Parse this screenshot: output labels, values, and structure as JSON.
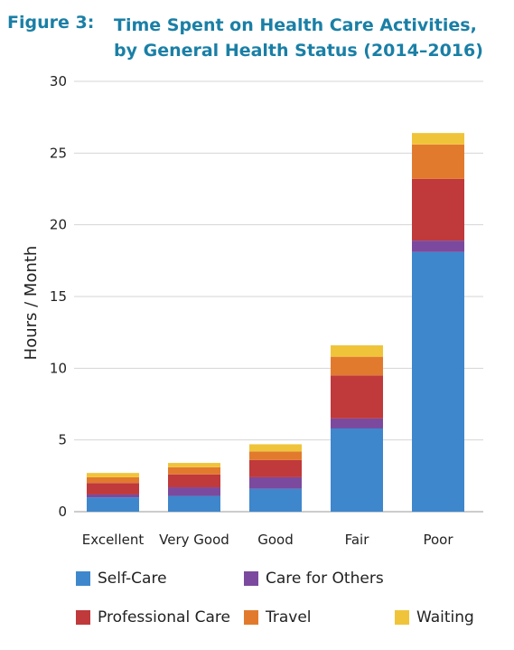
{
  "header": {
    "figure_label": "Figure 3:",
    "title": "Time Spent on Health Care Activities, by General Health Status (2014–2016)"
  },
  "chart_data": {
    "type": "bar",
    "stacked": true,
    "title": "Time Spent on Health Care Activities, by General Health Status (2014–2016)",
    "xlabel": "",
    "ylabel": "Hours / Month",
    "ylim": [
      0,
      30
    ],
    "yticks": [
      0,
      5,
      10,
      15,
      20,
      25,
      30
    ],
    "grid": true,
    "legend_position": "bottom",
    "categories": [
      "Excellent",
      "Very Good",
      "Good",
      "Fair",
      "Poor"
    ],
    "series": [
      {
        "name": "Self-Care",
        "color": "#3e87cc",
        "values": [
          1.0,
          1.1,
          1.6,
          5.8,
          18.1
        ]
      },
      {
        "name": "Care for Others",
        "color": "#7b4a9e",
        "values": [
          0.2,
          0.6,
          0.8,
          0.7,
          0.8
        ]
      },
      {
        "name": "Professional Care",
        "color": "#c0393b",
        "values": [
          0.8,
          0.9,
          1.2,
          3.0,
          4.3
        ]
      },
      {
        "name": "Travel",
        "color": "#e27a2e",
        "values": [
          0.4,
          0.5,
          0.6,
          1.3,
          2.4
        ]
      },
      {
        "name": "Waiting",
        "color": "#f0c43a",
        "values": [
          0.3,
          0.3,
          0.5,
          0.8,
          0.8
        ]
      }
    ]
  }
}
